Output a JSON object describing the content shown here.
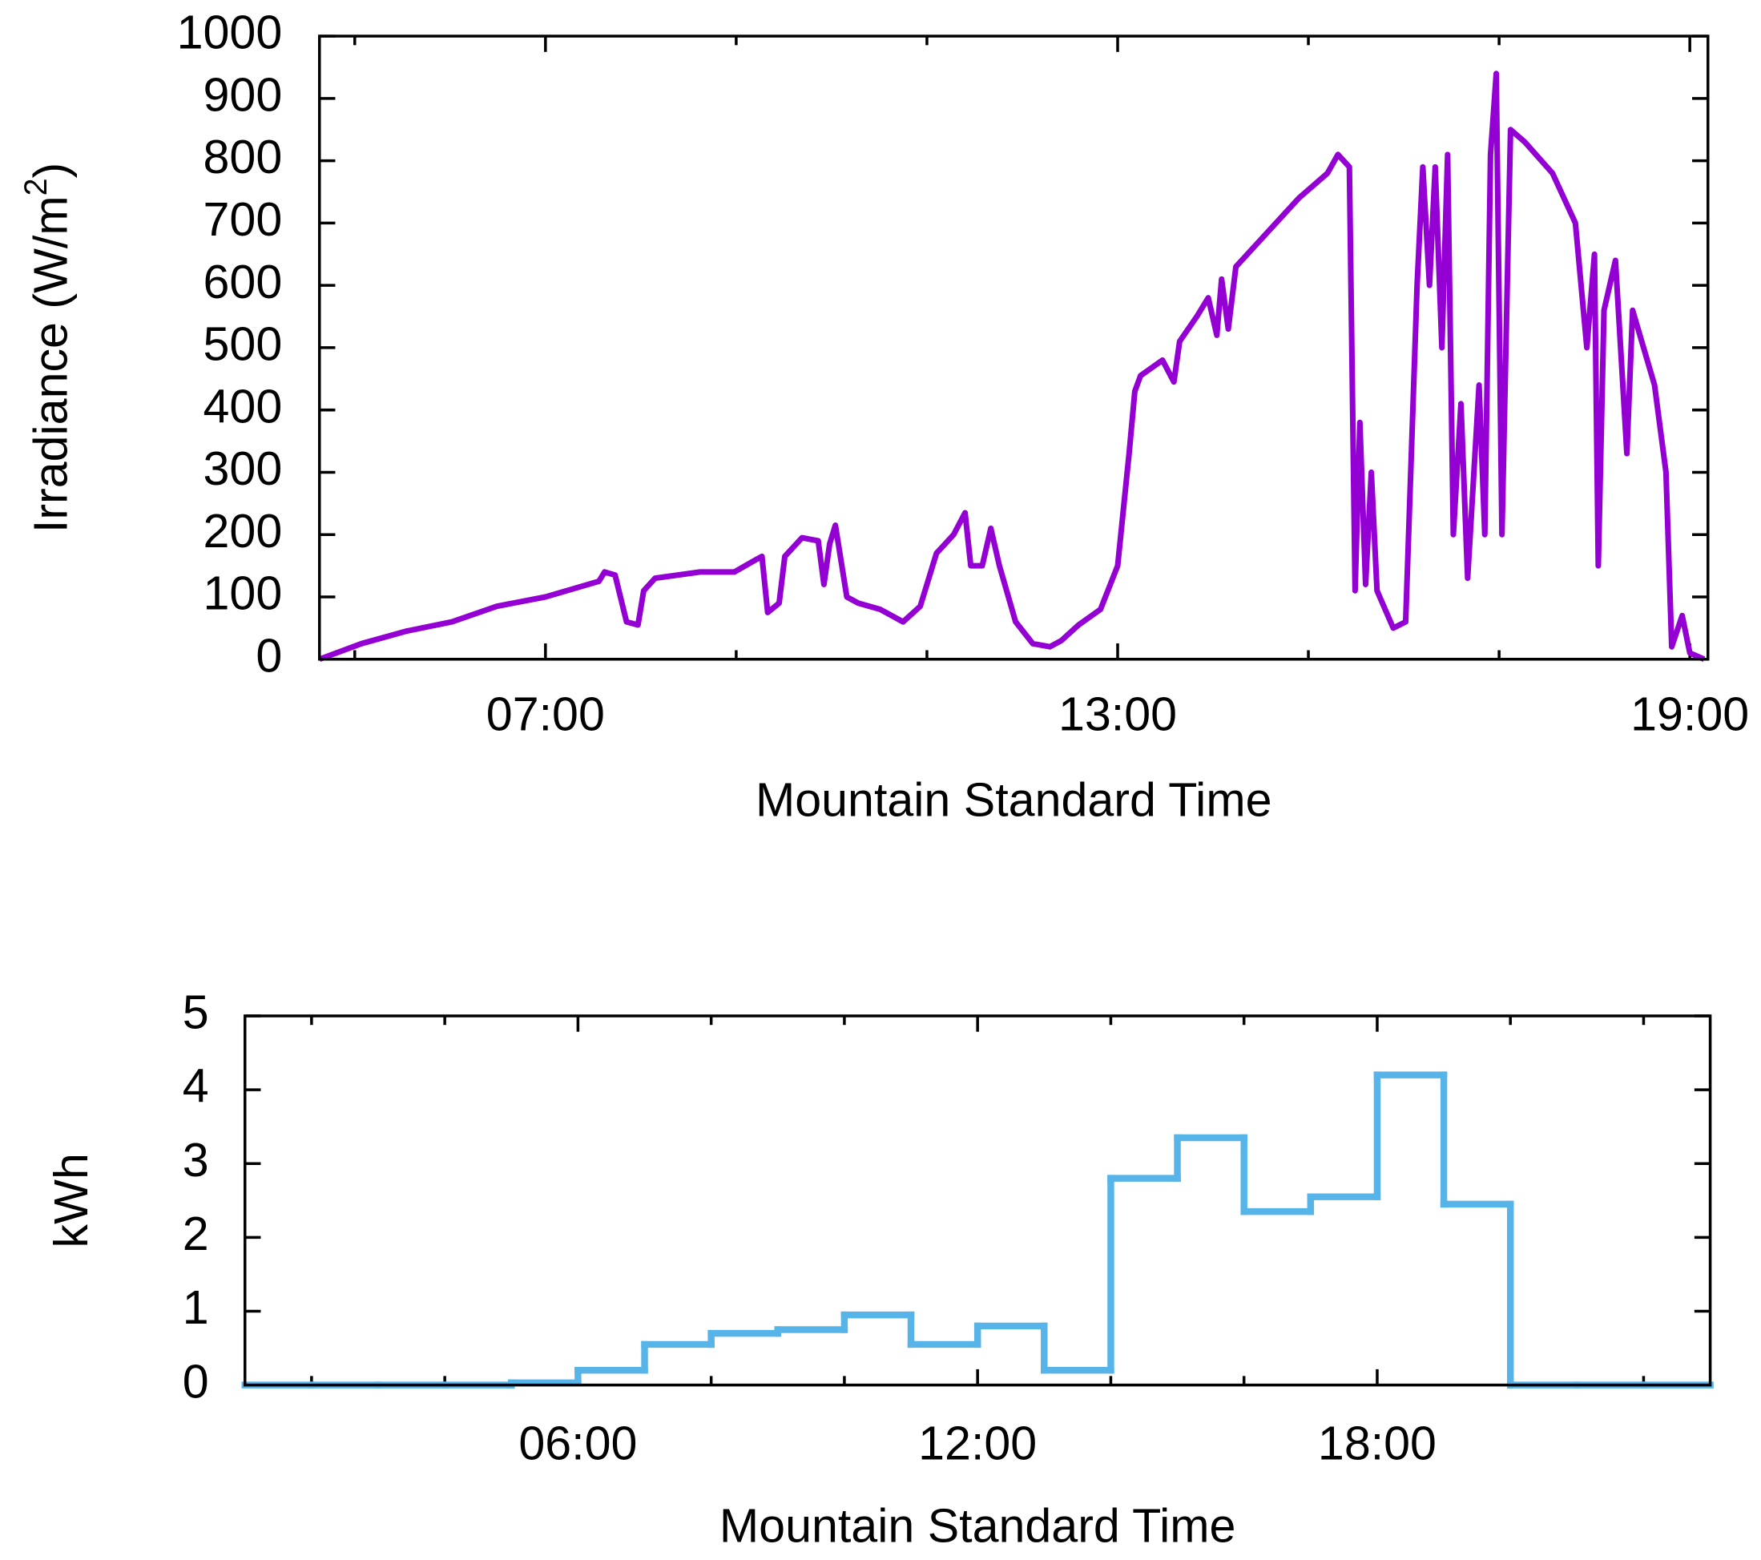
{
  "chart_data": [
    {
      "type": "line",
      "ylabel": [
        "Irradiance (W/m",
        "2",
        ")"
      ],
      "xlabel": "Mountain Standard Time",
      "xlim": [
        4.63,
        19.19
      ],
      "ylim": [
        0,
        1000
      ],
      "xticks": [
        {
          "value": 7,
          "label": "07:00"
        },
        {
          "value": 13,
          "label": "13:00"
        },
        {
          "value": 19,
          "label": "19:00"
        }
      ],
      "xminorticks": [
        5,
        9,
        11,
        15,
        17
      ],
      "yticks": [
        0,
        100,
        200,
        300,
        400,
        500,
        600,
        700,
        800,
        900,
        1000
      ],
      "series": [
        {
          "color": "#9400d3",
          "x": [
            4.63,
            5.07,
            5.54,
            6.02,
            6.49,
            7.0,
            7.56,
            7.62,
            7.73,
            7.85,
            7.97,
            8.03,
            8.15,
            8.62,
            8.98,
            9.21,
            9.27,
            9.33,
            9.45,
            9.51,
            9.69,
            9.86,
            9.92,
            9.98,
            10.04,
            10.16,
            10.28,
            10.51,
            10.75,
            10.93,
            11.1,
            11.28,
            11.4,
            11.46,
            11.58,
            11.67,
            11.76,
            11.93,
            12.11,
            12.29,
            12.41,
            12.59,
            12.82,
            13.0,
            13.12,
            13.18,
            13.24,
            13.47,
            13.59,
            13.65,
            13.83,
            13.95,
            14.04,
            14.09,
            14.16,
            14.24,
            14.66,
            14.9,
            15.2,
            15.31,
            15.43,
            15.49,
            15.54,
            15.6,
            15.66,
            15.72,
            15.89,
            16.02,
            16.14,
            16.2,
            16.27,
            16.33,
            16.4,
            16.46,
            16.52,
            16.6,
            16.67,
            16.79,
            16.85,
            16.91,
            16.97,
            17.03,
            17.12,
            17.27,
            17.56,
            17.8,
            17.92,
            18.0,
            18.04,
            18.1,
            18.22,
            18.34,
            18.4,
            18.63,
            18.75,
            18.81,
            18.92,
            19.0,
            19.15
          ],
          "values": [
            0,
            25,
            45,
            60,
            85,
            100,
            125,
            140,
            135,
            60,
            55,
            110,
            130,
            140,
            140,
            160,
            165,
            75,
            90,
            165,
            195,
            190,
            120,
            185,
            215,
            100,
            90,
            80,
            60,
            85,
            170,
            200,
            235,
            150,
            150,
            210,
            150,
            60,
            25,
            20,
            30,
            55,
            80,
            150,
            330,
            430,
            455,
            480,
            445,
            510,
            550,
            580,
            520,
            610,
            530,
            630,
            700,
            740,
            780,
            810,
            790,
            110,
            380,
            120,
            300,
            110,
            50,
            60,
            600,
            790,
            600,
            790,
            500,
            810,
            200,
            410,
            130,
            440,
            200,
            810,
            940,
            200,
            850,
            830,
            780,
            700,
            500,
            650,
            150,
            560,
            640,
            330,
            560,
            440,
            300,
            20,
            70,
            10,
            0
          ]
        }
      ]
    },
    {
      "type": "step",
      "ylabel": [
        "kWh"
      ],
      "xlabel": "Mountain Standard Time",
      "xlim": [
        1,
        23
      ],
      "ylim": [
        0,
        5
      ],
      "xticks": [
        {
          "value": 6,
          "label": "06:00"
        },
        {
          "value": 12,
          "label": "12:00"
        },
        {
          "value": 18,
          "label": "18:00"
        }
      ],
      "xminorticks": [
        2,
        4,
        8,
        10,
        14,
        16,
        20,
        22
      ],
      "yticks": [
        0,
        1,
        2,
        3,
        4,
        5
      ],
      "series": [
        {
          "color": "#56b4e9",
          "bins": [
            1,
            2,
            3,
            4,
            5,
            6,
            7,
            8,
            9,
            10,
            11,
            12,
            13,
            14,
            15,
            16,
            17,
            18,
            19,
            20,
            21,
            22,
            23
          ],
          "values": [
            0,
            0,
            0,
            0,
            0.03,
            0.2,
            0.55,
            0.7,
            0.75,
            0.95,
            0.55,
            0.8,
            0.2,
            2.8,
            3.35,
            2.35,
            2.55,
            4.2,
            2.45,
            0,
            0,
            0
          ]
        }
      ]
    }
  ]
}
